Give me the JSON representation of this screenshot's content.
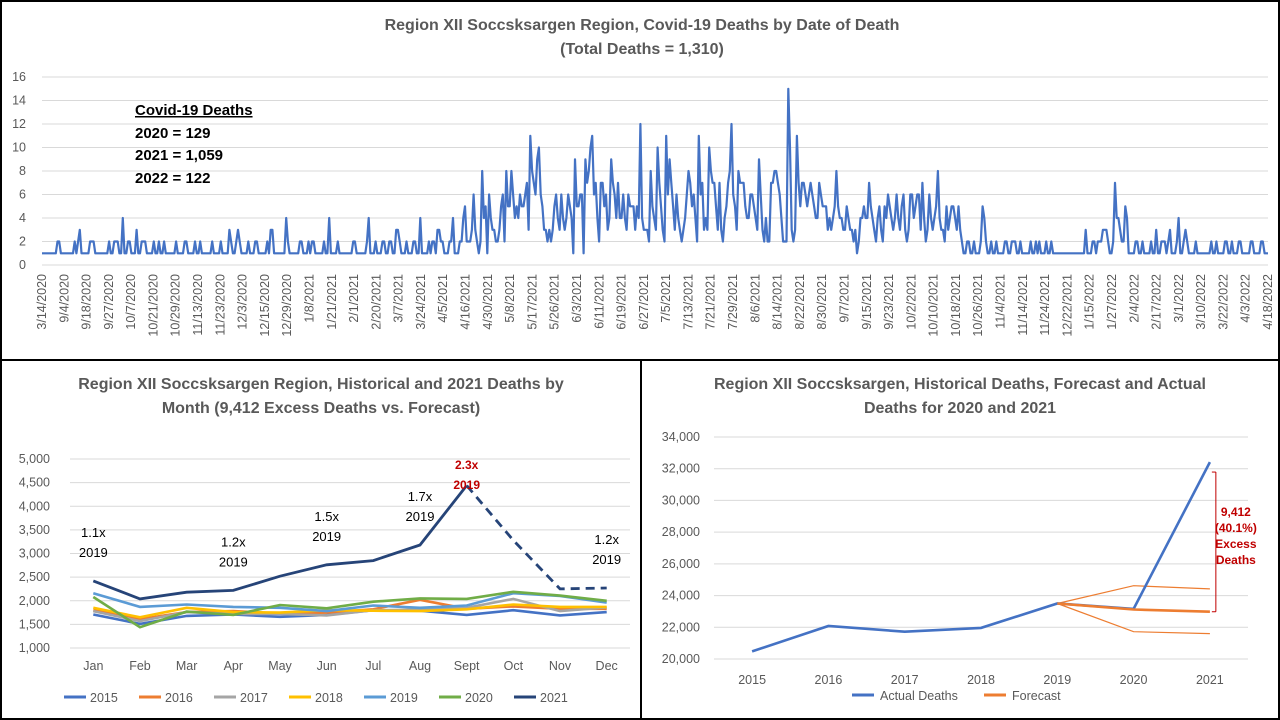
{
  "chart_data": [
    {
      "type": "line",
      "title": "Region XII Soccsksargen Region, Covid-19 Deaths by Date of Death",
      "subtitle": "(Total Deaths  = 1,310)",
      "ylim": [
        0,
        16
      ],
      "yticks": [
        0,
        2,
        4,
        6,
        8,
        10,
        12,
        14,
        16
      ],
      "x_tick_labels": [
        "3/14/2020",
        "9/4/2020",
        "9/18/2020",
        "9/27/2020",
        "10/7/2020",
        "10/21/2020",
        "10/29/2020",
        "11/13/2020",
        "11/23/2020",
        "12/3/2020",
        "12/15/2020",
        "12/29/2020",
        "1/8/2021",
        "1/21/2021",
        "2/1/2021",
        "2/20/2021",
        "3/7/2021",
        "3/24/2021",
        "4/5/2021",
        "4/16/2021",
        "4/30/2021",
        "5/8/2021",
        "5/17/2021",
        "5/26/2021",
        "6/3/2021",
        "6/11/2021",
        "6/19/2021",
        "6/27/2021",
        "7/5/2021",
        "7/13/2021",
        "7/21/2021",
        "7/29/2021",
        "8/6/2021",
        "8/14/2021",
        "8/22/2021",
        "8/30/2021",
        "9/7/2021",
        "9/15/2021",
        "9/23/2021",
        "10/2/2021",
        "10/10/2021",
        "10/18/2021",
        "10/26/2021",
        "11/4/2021",
        "11/14/2021",
        "11/24/2021",
        "12/22/2021",
        "1/15/2022",
        "1/27/2022",
        "2/4/2022",
        "2/17/2022",
        "3/1/2022",
        "3/10/2022",
        "3/22/2022",
        "4/3/2022",
        "4/18/2022"
      ],
      "series": [
        {
          "color": "#4472c4",
          "values": [
            1,
            1,
            1,
            1,
            1,
            1,
            1,
            1,
            1,
            2,
            2,
            1,
            1,
            1,
            1,
            1,
            1,
            1,
            1,
            2,
            1,
            2,
            3,
            1,
            1,
            1,
            1,
            1,
            2,
            2,
            2,
            1,
            1,
            1,
            1,
            1,
            1,
            1,
            1,
            2,
            1,
            1,
            2,
            2,
            2,
            1,
            1,
            4,
            1,
            1,
            2,
            2,
            1,
            1,
            1,
            3,
            1,
            1,
            2,
            2,
            2,
            1,
            1,
            1,
            1,
            2,
            1,
            1,
            2,
            1,
            1,
            2,
            1,
            1,
            1,
            1,
            1,
            1,
            2,
            1,
            1,
            1,
            1,
            2,
            2,
            1,
            1,
            1,
            1,
            2,
            1,
            1,
            2,
            1,
            1,
            1,
            1,
            1,
            1,
            2,
            1,
            1,
            1,
            1,
            2,
            1,
            1,
            1,
            1,
            3,
            2,
            1,
            1,
            2,
            3,
            2,
            1,
            1,
            1,
            1,
            2,
            1,
            1,
            1,
            2,
            2,
            1,
            1,
            1,
            1,
            1,
            2,
            1,
            3,
            3,
            1,
            1,
            1,
            1,
            1,
            1,
            1,
            4,
            2,
            1,
            1,
            1,
            1,
            1,
            1,
            2,
            2,
            1,
            1,
            1,
            2,
            1,
            2,
            2,
            1,
            1,
            1,
            1,
            1,
            2,
            1,
            1,
            4,
            1,
            1,
            1,
            1,
            2,
            1,
            1,
            1,
            1,
            1,
            1,
            1,
            1,
            2,
            2,
            1,
            1,
            1,
            1,
            1,
            1,
            2,
            4,
            1,
            1,
            1,
            2,
            1,
            1,
            1,
            2,
            2,
            1,
            1,
            2,
            2,
            1,
            1,
            3,
            3,
            2,
            1,
            1,
            1,
            2,
            1,
            1,
            1,
            2,
            2,
            1,
            1,
            4,
            1,
            1,
            1,
            1,
            2,
            1,
            2,
            2,
            1,
            3,
            3,
            2,
            2,
            1,
            1,
            1,
            2,
            2,
            4,
            1,
            1,
            1,
            2,
            2,
            4,
            5,
            2,
            2,
            2,
            3,
            6,
            3,
            2,
            1,
            2,
            8,
            4,
            5,
            1,
            6,
            4,
            3,
            3,
            2,
            2,
            3,
            5,
            6,
            2,
            8,
            5,
            5,
            8,
            6,
            4,
            5,
            4,
            6,
            5,
            5,
            6,
            7,
            3,
            11,
            8,
            7,
            6,
            9,
            10,
            6,
            5,
            3,
            3,
            2,
            3,
            2,
            3,
            5,
            6,
            4,
            3,
            6,
            4,
            3,
            4,
            6,
            5,
            4,
            1,
            9,
            5,
            5,
            6,
            6,
            1,
            9,
            7,
            8,
            10,
            11,
            6,
            7,
            4,
            2,
            7,
            7,
            5,
            6,
            3,
            4,
            9,
            7,
            6,
            4,
            7,
            4,
            4,
            6,
            4,
            3,
            6,
            5,
            5,
            5,
            3,
            5,
            4,
            12,
            4,
            3,
            3,
            3,
            2,
            8,
            5,
            4,
            3,
            10,
            7,
            5,
            3,
            2,
            11,
            6,
            9,
            7,
            5,
            3,
            6,
            4,
            3,
            2,
            3,
            4,
            6,
            8,
            7,
            5,
            6,
            4,
            2,
            11,
            6,
            7,
            3,
            4,
            3,
            10,
            8,
            7,
            7,
            5,
            3,
            7,
            3,
            2,
            4,
            5,
            7,
            8,
            12,
            6,
            5,
            3,
            8,
            7,
            7,
            7,
            5,
            4,
            4,
            6,
            6,
            5,
            4,
            3,
            9,
            6,
            3,
            2,
            4,
            2,
            2,
            7,
            7,
            8,
            8,
            7,
            6,
            4,
            2,
            2,
            2,
            15,
            10,
            3,
            2,
            3,
            11,
            7,
            5,
            7,
            7,
            6,
            5,
            6,
            7,
            6,
            5,
            4,
            4,
            7,
            6,
            5,
            5,
            5,
            3,
            4,
            3,
            4,
            5,
            8,
            5,
            4,
            4,
            3,
            3,
            5,
            4,
            3,
            3,
            2,
            3,
            1,
            2,
            4,
            4,
            5,
            4,
            4,
            7,
            5,
            4,
            3,
            2,
            4,
            5,
            3,
            2,
            5,
            4,
            6,
            5,
            4,
            3,
            4,
            6,
            4,
            3,
            5,
            6,
            3,
            2,
            3,
            6,
            6,
            4,
            5,
            6,
            6,
            3,
            7,
            4,
            2,
            3,
            6,
            4,
            3,
            4,
            5,
            8,
            4,
            3,
            3,
            2,
            5,
            3,
            4,
            5,
            5,
            4,
            3,
            5,
            3,
            2,
            1,
            1,
            2,
            2,
            1,
            1,
            2,
            1,
            1,
            1,
            2,
            5,
            4,
            2,
            1,
            1,
            2,
            1,
            1,
            2,
            1,
            1,
            1,
            1,
            2,
            2,
            1,
            1,
            2,
            2,
            2,
            1,
            1,
            2,
            1,
            1,
            1,
            1,
            1,
            2,
            1,
            1,
            2,
            1,
            2,
            1,
            1,
            1,
            2,
            1,
            1,
            2,
            1,
            1,
            1,
            1,
            1,
            1,
            1,
            1,
            1,
            1,
            1,
            1,
            1,
            1,
            1,
            1,
            1,
            1,
            1,
            3,
            1,
            1,
            1,
            2,
            2,
            1,
            2,
            2,
            2,
            3,
            3,
            3,
            2,
            1,
            1,
            2,
            7,
            4,
            4,
            3,
            2,
            2,
            5,
            4,
            1,
            1,
            1,
            1,
            2,
            2,
            1,
            1,
            2,
            1,
            1,
            1,
            1,
            2,
            1,
            1,
            3,
            1,
            1,
            2,
            2,
            2,
            1,
            2,
            3,
            1,
            1,
            1,
            2,
            4,
            1,
            1,
            2,
            3,
            2,
            1,
            1,
            1,
            1,
            2,
            1,
            1,
            1,
            1,
            1,
            1,
            1,
            1,
            2,
            1,
            1,
            2,
            1,
            1,
            1,
            1,
            2,
            2,
            1,
            1,
            2,
            1,
            1,
            1,
            2,
            2,
            1,
            1,
            1,
            1,
            1,
            2,
            2,
            1,
            1,
            1,
            1,
            2,
            2,
            1,
            1,
            1
          ]
        }
      ],
      "annotation": {
        "header": "Covid-19 Deaths",
        "lines": [
          "2020 = 129",
          "2021 = 1,059",
          "2022 = 122"
        ]
      }
    },
    {
      "type": "line",
      "title_lines": [
        "Region XII Soccsksargen Region, Historical and 2021 Deaths by",
        "Month (9,412 Excess Deaths vs. Forecast)"
      ],
      "categories": [
        "Jan",
        "Feb",
        "Mar",
        "Apr",
        "May",
        "Jun",
        "Jul",
        "Aug",
        "Sept",
        "Oct",
        "Nov",
        "Dec"
      ],
      "ylim": [
        1000,
        5000
      ],
      "yticks": [
        "1,000",
        "1,500",
        "2,000",
        "2,500",
        "3,000",
        "3,500",
        "4,000",
        "4,500",
        "5,000"
      ],
      "ytick_values": [
        1000,
        1500,
        2000,
        2500,
        3000,
        3500,
        4000,
        4500,
        5000
      ],
      "series": [
        {
          "name": "2015",
          "color": "#4472c4",
          "values": [
            1710,
            1510,
            1680,
            1710,
            1660,
            1700,
            1800,
            1790,
            1700,
            1800,
            1690,
            1760
          ]
        },
        {
          "name": "2016",
          "color": "#ed7d31",
          "values": [
            1800,
            1610,
            1760,
            1780,
            1730,
            1750,
            1820,
            2020,
            1830,
            1880,
            1830,
            1830
          ]
        },
        {
          "name": "2017",
          "color": "#a5a5a5",
          "values": [
            1780,
            1570,
            1760,
            1720,
            1720,
            1690,
            1800,
            1810,
            1850,
            2040,
            1780,
            1860
          ]
        },
        {
          "name": "2018",
          "color": "#ffc000",
          "values": [
            1850,
            1650,
            1850,
            1760,
            1750,
            1800,
            1790,
            1780,
            1820,
            1920,
            1870,
            1870
          ]
        },
        {
          "name": "2019",
          "color": "#5b9bd5",
          "values": [
            2160,
            1870,
            1920,
            1870,
            1850,
            1780,
            1900,
            1850,
            1900,
            2160,
            2100,
            1960
          ]
        },
        {
          "name": "2020",
          "color": "#70ad47",
          "values": [
            2080,
            1440,
            1770,
            1700,
            1910,
            1840,
            1980,
            2050,
            2040,
            2190,
            2110,
            2000
          ]
        },
        {
          "name": "2021",
          "color": "#264478",
          "values": [
            2420,
            2040,
            2180,
            2220,
            2520,
            2760,
            2850,
            3180,
            4440,
            3280,
            2250,
            2270
          ],
          "dashed_from_index": 8
        }
      ],
      "annotations": [
        {
          "lines": [
            "1.1x",
            "2019"
          ],
          "color": "#000",
          "at_index": 0
        },
        {
          "lines": [
            "1.2x",
            "2019"
          ],
          "color": "#000",
          "at_index": 3
        },
        {
          "lines": [
            "1.5x",
            "2019"
          ],
          "color": "#000",
          "at_index": 5
        },
        {
          "lines": [
            "1.7x",
            "2019"
          ],
          "color": "#000",
          "at_index": 7
        },
        {
          "lines": [
            "2.3x",
            "2019"
          ],
          "color": "#c00000",
          "at_index": 8
        },
        {
          "lines": [
            "1.2x",
            "2019"
          ],
          "color": "#000",
          "at_index": 11
        }
      ]
    },
    {
      "type": "line",
      "title_lines": [
        "Region XII Soccsksargen, Historical Deaths, Forecast and Actual",
        "Deaths for 2020 and 2021"
      ],
      "categories": [
        "2015",
        "2016",
        "2017",
        "2018",
        "2019",
        "2020",
        "2021"
      ],
      "ylim": [
        20000,
        34000
      ],
      "yticks": [
        "20,000",
        "22,000",
        "24,000",
        "26,000",
        "28,000",
        "30,000",
        "32,000",
        "34,000"
      ],
      "ytick_values": [
        20000,
        22000,
        24000,
        26000,
        28000,
        30000,
        32000,
        34000
      ],
      "series": [
        {
          "name": "Actual Deaths",
          "color": "#4472c4",
          "values": [
            20480,
            22080,
            21720,
            21960,
            23500,
            23160,
            32420
          ]
        },
        {
          "name": "Forecast",
          "color": "#ed7d31",
          "values": [
            null,
            null,
            null,
            null,
            23500,
            23120,
            22980
          ]
        }
      ],
      "forecast_bounds": {
        "upper": [
          null,
          null,
          null,
          null,
          23500,
          24620,
          24420
        ],
        "lower": [
          null,
          null,
          null,
          null,
          23500,
          21720,
          21600
        ]
      },
      "excess_annotation": [
        "9,412",
        "(40.1%)",
        "Excess",
        "Deaths"
      ]
    }
  ]
}
